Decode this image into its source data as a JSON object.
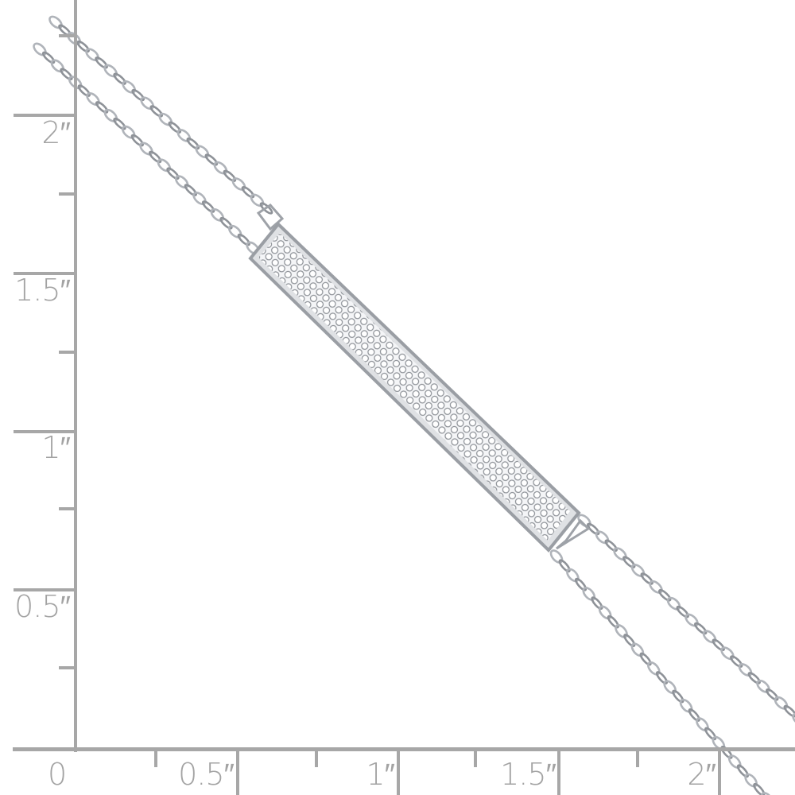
{
  "ruler": {
    "color": "#a7a7a7",
    "vertical_labels": [
      "2″",
      "1.5″",
      "1″",
      "0.5″"
    ],
    "horizontal_labels": [
      "0",
      "0.5″",
      "1″",
      "1.5″",
      "2″"
    ]
  },
  "product": {
    "type": "double-chain bracelet with pavé crystal bar",
    "metal_color": "#b8bcc2"
  }
}
